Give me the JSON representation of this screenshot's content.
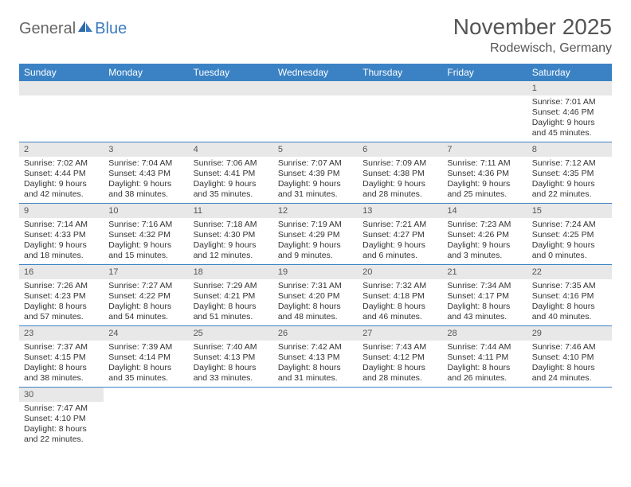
{
  "logo": {
    "general": "General",
    "blue": "Blue"
  },
  "title": "November 2025",
  "location": "Rodewisch, Germany",
  "colors": {
    "header_bg": "#3b82c4",
    "header_fg": "#ffffff",
    "daynum_bg": "#e8e8e8",
    "border": "#3b82c4",
    "logo_blue": "#3b7bbf"
  },
  "day_names": [
    "Sunday",
    "Monday",
    "Tuesday",
    "Wednesday",
    "Thursday",
    "Friday",
    "Saturday"
  ],
  "weeks": [
    [
      null,
      null,
      null,
      null,
      null,
      null,
      {
        "n": "1",
        "sr": "Sunrise: 7:01 AM",
        "ss": "Sunset: 4:46 PM",
        "dl1": "Daylight: 9 hours",
        "dl2": "and 45 minutes."
      }
    ],
    [
      {
        "n": "2",
        "sr": "Sunrise: 7:02 AM",
        "ss": "Sunset: 4:44 PM",
        "dl1": "Daylight: 9 hours",
        "dl2": "and 42 minutes."
      },
      {
        "n": "3",
        "sr": "Sunrise: 7:04 AM",
        "ss": "Sunset: 4:43 PM",
        "dl1": "Daylight: 9 hours",
        "dl2": "and 38 minutes."
      },
      {
        "n": "4",
        "sr": "Sunrise: 7:06 AM",
        "ss": "Sunset: 4:41 PM",
        "dl1": "Daylight: 9 hours",
        "dl2": "and 35 minutes."
      },
      {
        "n": "5",
        "sr": "Sunrise: 7:07 AM",
        "ss": "Sunset: 4:39 PM",
        "dl1": "Daylight: 9 hours",
        "dl2": "and 31 minutes."
      },
      {
        "n": "6",
        "sr": "Sunrise: 7:09 AM",
        "ss": "Sunset: 4:38 PM",
        "dl1": "Daylight: 9 hours",
        "dl2": "and 28 minutes."
      },
      {
        "n": "7",
        "sr": "Sunrise: 7:11 AM",
        "ss": "Sunset: 4:36 PM",
        "dl1": "Daylight: 9 hours",
        "dl2": "and 25 minutes."
      },
      {
        "n": "8",
        "sr": "Sunrise: 7:12 AM",
        "ss": "Sunset: 4:35 PM",
        "dl1": "Daylight: 9 hours",
        "dl2": "and 22 minutes."
      }
    ],
    [
      {
        "n": "9",
        "sr": "Sunrise: 7:14 AM",
        "ss": "Sunset: 4:33 PM",
        "dl1": "Daylight: 9 hours",
        "dl2": "and 18 minutes."
      },
      {
        "n": "10",
        "sr": "Sunrise: 7:16 AM",
        "ss": "Sunset: 4:32 PM",
        "dl1": "Daylight: 9 hours",
        "dl2": "and 15 minutes."
      },
      {
        "n": "11",
        "sr": "Sunrise: 7:18 AM",
        "ss": "Sunset: 4:30 PM",
        "dl1": "Daylight: 9 hours",
        "dl2": "and 12 minutes."
      },
      {
        "n": "12",
        "sr": "Sunrise: 7:19 AM",
        "ss": "Sunset: 4:29 PM",
        "dl1": "Daylight: 9 hours",
        "dl2": "and 9 minutes."
      },
      {
        "n": "13",
        "sr": "Sunrise: 7:21 AM",
        "ss": "Sunset: 4:27 PM",
        "dl1": "Daylight: 9 hours",
        "dl2": "and 6 minutes."
      },
      {
        "n": "14",
        "sr": "Sunrise: 7:23 AM",
        "ss": "Sunset: 4:26 PM",
        "dl1": "Daylight: 9 hours",
        "dl2": "and 3 minutes."
      },
      {
        "n": "15",
        "sr": "Sunrise: 7:24 AM",
        "ss": "Sunset: 4:25 PM",
        "dl1": "Daylight: 9 hours",
        "dl2": "and 0 minutes."
      }
    ],
    [
      {
        "n": "16",
        "sr": "Sunrise: 7:26 AM",
        "ss": "Sunset: 4:23 PM",
        "dl1": "Daylight: 8 hours",
        "dl2": "and 57 minutes."
      },
      {
        "n": "17",
        "sr": "Sunrise: 7:27 AM",
        "ss": "Sunset: 4:22 PM",
        "dl1": "Daylight: 8 hours",
        "dl2": "and 54 minutes."
      },
      {
        "n": "18",
        "sr": "Sunrise: 7:29 AM",
        "ss": "Sunset: 4:21 PM",
        "dl1": "Daylight: 8 hours",
        "dl2": "and 51 minutes."
      },
      {
        "n": "19",
        "sr": "Sunrise: 7:31 AM",
        "ss": "Sunset: 4:20 PM",
        "dl1": "Daylight: 8 hours",
        "dl2": "and 48 minutes."
      },
      {
        "n": "20",
        "sr": "Sunrise: 7:32 AM",
        "ss": "Sunset: 4:18 PM",
        "dl1": "Daylight: 8 hours",
        "dl2": "and 46 minutes."
      },
      {
        "n": "21",
        "sr": "Sunrise: 7:34 AM",
        "ss": "Sunset: 4:17 PM",
        "dl1": "Daylight: 8 hours",
        "dl2": "and 43 minutes."
      },
      {
        "n": "22",
        "sr": "Sunrise: 7:35 AM",
        "ss": "Sunset: 4:16 PM",
        "dl1": "Daylight: 8 hours",
        "dl2": "and 40 minutes."
      }
    ],
    [
      {
        "n": "23",
        "sr": "Sunrise: 7:37 AM",
        "ss": "Sunset: 4:15 PM",
        "dl1": "Daylight: 8 hours",
        "dl2": "and 38 minutes."
      },
      {
        "n": "24",
        "sr": "Sunrise: 7:39 AM",
        "ss": "Sunset: 4:14 PM",
        "dl1": "Daylight: 8 hours",
        "dl2": "and 35 minutes."
      },
      {
        "n": "25",
        "sr": "Sunrise: 7:40 AM",
        "ss": "Sunset: 4:13 PM",
        "dl1": "Daylight: 8 hours",
        "dl2": "and 33 minutes."
      },
      {
        "n": "26",
        "sr": "Sunrise: 7:42 AM",
        "ss": "Sunset: 4:13 PM",
        "dl1": "Daylight: 8 hours",
        "dl2": "and 31 minutes."
      },
      {
        "n": "27",
        "sr": "Sunrise: 7:43 AM",
        "ss": "Sunset: 4:12 PM",
        "dl1": "Daylight: 8 hours",
        "dl2": "and 28 minutes."
      },
      {
        "n": "28",
        "sr": "Sunrise: 7:44 AM",
        "ss": "Sunset: 4:11 PM",
        "dl1": "Daylight: 8 hours",
        "dl2": "and 26 minutes."
      },
      {
        "n": "29",
        "sr": "Sunrise: 7:46 AM",
        "ss": "Sunset: 4:10 PM",
        "dl1": "Daylight: 8 hours",
        "dl2": "and 24 minutes."
      }
    ],
    [
      {
        "n": "30",
        "sr": "Sunrise: 7:47 AM",
        "ss": "Sunset: 4:10 PM",
        "dl1": "Daylight: 8 hours",
        "dl2": "and 22 minutes."
      },
      null,
      null,
      null,
      null,
      null,
      null
    ]
  ]
}
